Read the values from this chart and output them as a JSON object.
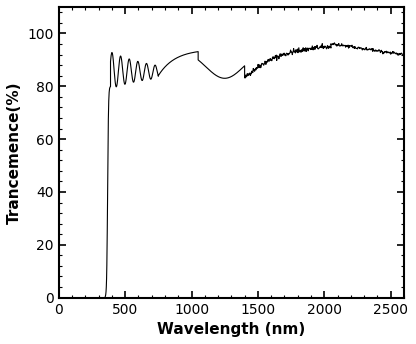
{
  "title": "",
  "xlabel": "Wavelength (nm)",
  "ylabel": "Trancemence(%)",
  "xlim": [
    0,
    2600
  ],
  "ylim": [
    0,
    110
  ],
  "xticks": [
    0,
    500,
    1000,
    1500,
    2000,
    2500
  ],
  "yticks": [
    0,
    20,
    40,
    60,
    80,
    100
  ],
  "line_color": "#000000",
  "line_width": 0.8,
  "background_color": "#ffffff",
  "figsize": [
    4.16,
    3.44
  ],
  "dpi": 100
}
